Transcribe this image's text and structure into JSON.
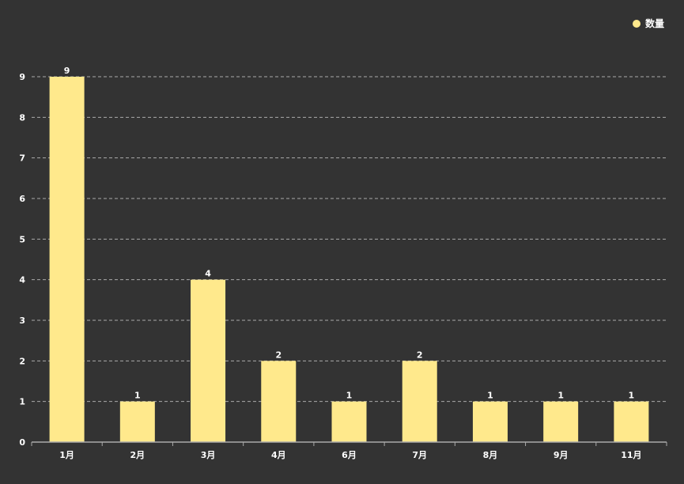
{
  "chart_data": {
    "type": "bar",
    "categories": [
      "1月",
      "2月",
      "3月",
      "4月",
      "6月",
      "7月",
      "8月",
      "9月",
      "11月"
    ],
    "series": [
      {
        "name": "数量",
        "values": [
          9,
          1,
          4,
          2,
          1,
          2,
          1,
          1,
          1
        ],
        "color": "#ffe98c"
      }
    ],
    "ylim": [
      0,
      9
    ],
    "yticks": [
      0,
      1,
      2,
      3,
      4,
      5,
      6,
      7,
      8,
      9
    ],
    "grid": true,
    "legend_position": "top-right",
    "data_labels": true
  },
  "colors": {
    "background": "#333333",
    "axis": "#aaaaaa",
    "grid": "#aaaaaa",
    "text": "#ffffff"
  }
}
